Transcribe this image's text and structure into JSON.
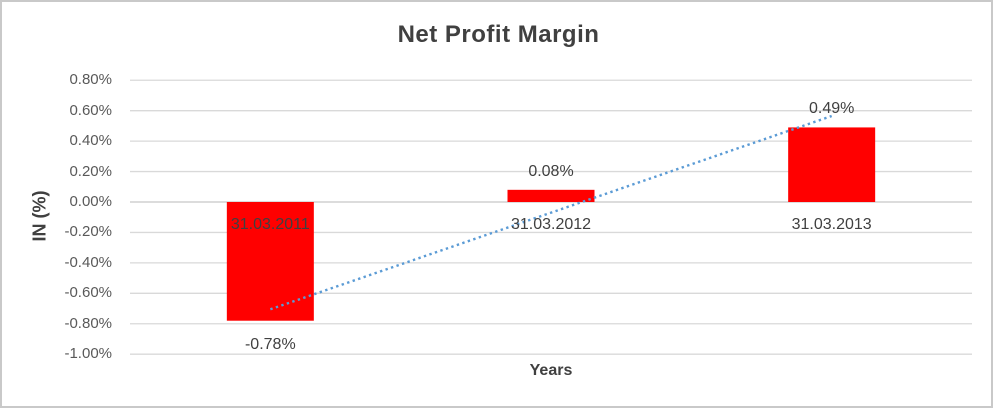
{
  "chart_data": {
    "type": "bar",
    "title": "Net Profit Margin",
    "xlabel": "Years",
    "ylabel": "IN (%)",
    "categories": [
      "31.03.2011",
      "31.03.2012",
      "31.03.2013"
    ],
    "values": [
      -0.78,
      0.08,
      0.49
    ],
    "data_labels": [
      "-0.78%",
      "0.08%",
      "0.49%"
    ],
    "ylim": [
      -1.0,
      0.8
    ],
    "ytick_step": 0.2,
    "ytick_labels": [
      "0.80%",
      "0.60%",
      "0.40%",
      "0.20%",
      "0.00%",
      "-0.20%",
      "-0.40%",
      "-0.60%",
      "-0.80%",
      "-1.00%"
    ],
    "grid": true,
    "legend": "none",
    "bar_color": "#ff0000",
    "trendline": {
      "type": "linear",
      "style": "dotted",
      "color": "#5b9bd5"
    },
    "gridline_color": "#d9d9d9",
    "zero_line_color": "#c8c8c8",
    "text_color": "#404040",
    "tick_text_color": "#595959"
  }
}
